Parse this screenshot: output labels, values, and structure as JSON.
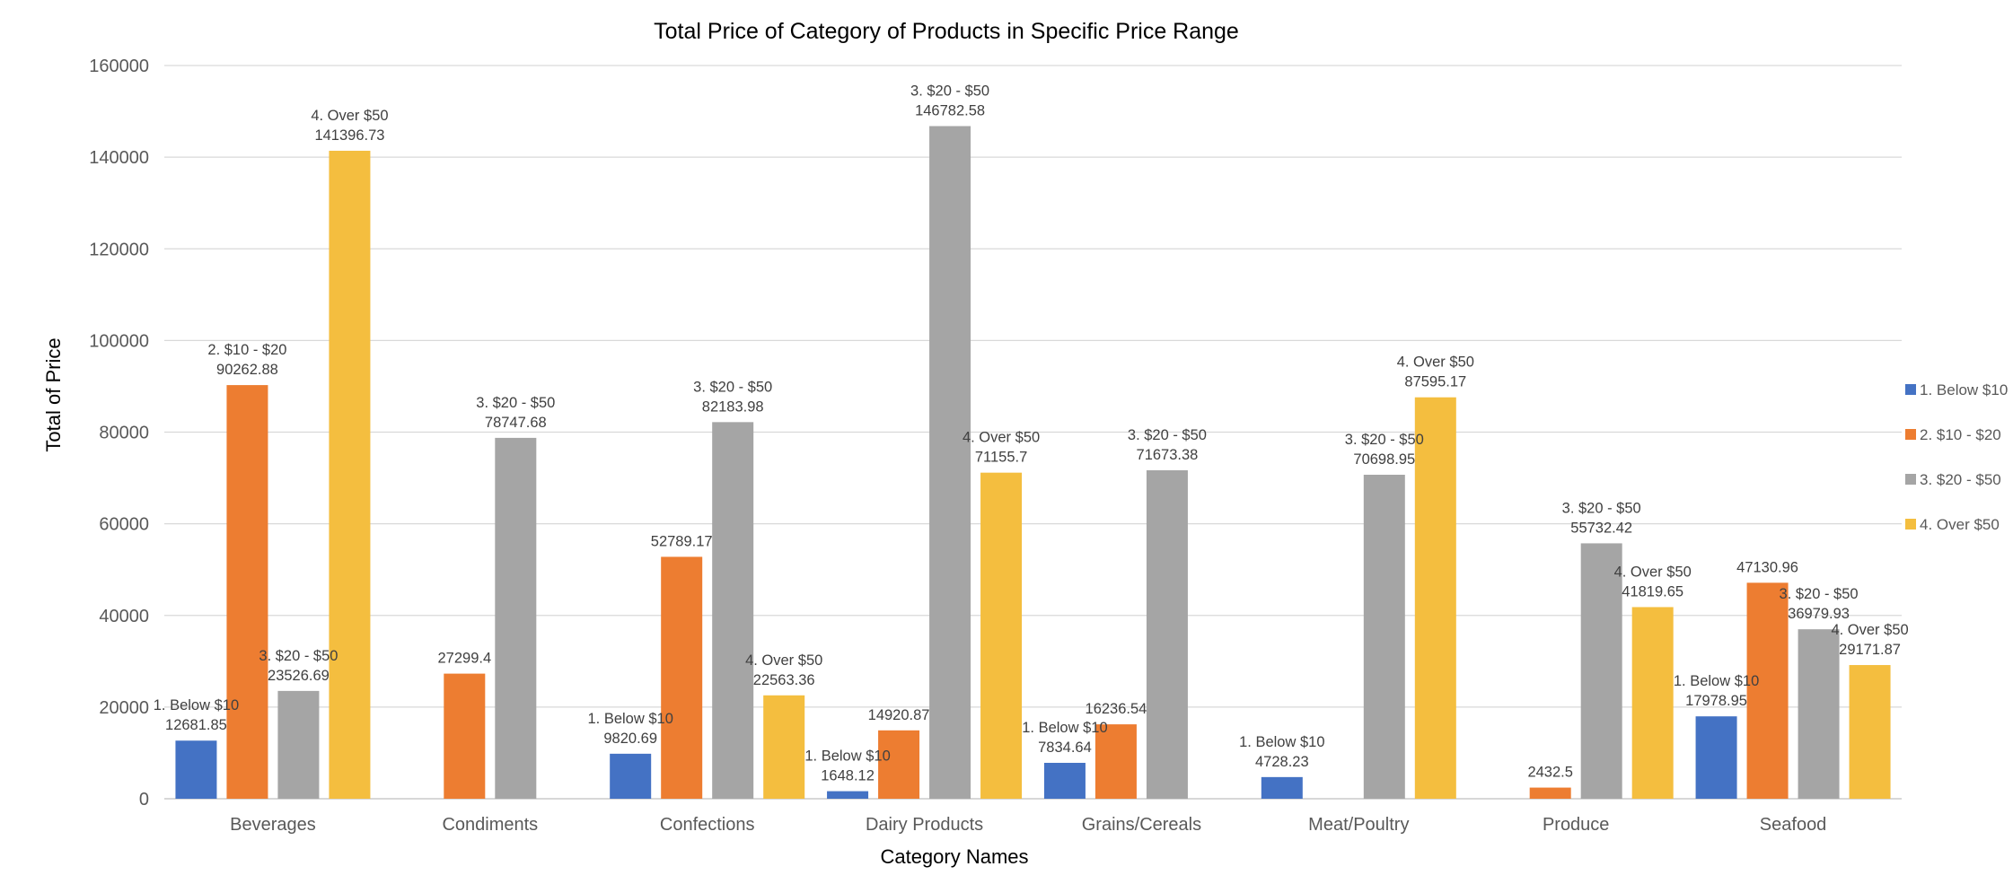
{
  "chart_data": {
    "type": "bar",
    "title": "Total Price of Category of Products in Specific Price Range",
    "xlabel": "Category Names",
    "ylabel": "Total of Price",
    "ylim": [
      0,
      160000
    ],
    "yticks": [
      "0",
      "20000",
      "40000",
      "60000",
      "80000",
      "100000",
      "120000",
      "140000",
      "160000"
    ],
    "grid": true,
    "legend_position": "right",
    "categories": [
      "Beverages",
      "Condiments",
      "Confections",
      "Dairy Products",
      "Grains/Cereals",
      "Meat/Poultry",
      "Produce",
      "Seafood"
    ],
    "series": [
      {
        "name": "1. Below $10",
        "color": "#4472C4",
        "values": [
          12681.85,
          null,
          9820.69,
          1648.12,
          7834.64,
          4728.23,
          null,
          17978.95
        ],
        "labels": [
          "12681.85",
          null,
          "9820.69",
          "1648.12",
          "7834.64",
          "4728.23",
          null,
          "17978.95"
        ]
      },
      {
        "name": "2. $10 - $20",
        "color": "#ED7D31",
        "values": [
          90262.88,
          27299.4,
          52789.17,
          14920.87,
          16236.54,
          null,
          2432.5,
          47130.96
        ],
        "labels": [
          "90262.88",
          "27299.4",
          "52789.17",
          "14920.87",
          "16236.54",
          null,
          "2432.5",
          "47130.96"
        ]
      },
      {
        "name": "3. $20 - $50",
        "color": "#A5A5A5",
        "values": [
          23526.69,
          78747.68,
          82183.98,
          146782.58,
          71673.38,
          70698.95,
          55732.42,
          36979.93
        ],
        "labels": [
          "23526.69",
          "78747.68",
          "82183.98",
          "146782.58",
          "71673.38",
          "70698.95",
          "55732.42",
          "36979.93"
        ]
      },
      {
        "name": "4. Over $50",
        "color": "#F4BE3F",
        "values": [
          141396.73,
          null,
          22563.36,
          71155.7,
          null,
          87595.17,
          41819.65,
          29171.87
        ],
        "labels": [
          "141396.73",
          null,
          "22563.36",
          "71155.7",
          null,
          "87595.17",
          "41819.65",
          "29171.87"
        ]
      }
    ],
    "data_label_series_names": [
      [
        "1. Below $10",
        null,
        "1. Below $10",
        "1. Below $10",
        "1. Below $10",
        "1. Below $10",
        null,
        "1. Below $10"
      ],
      [
        "2. $10 - $20",
        null,
        null,
        null,
        null,
        null,
        null,
        null
      ],
      [
        "3. $20 - $50",
        "3. $20 - $50",
        "3. $20 - $50",
        "3. $20 - $50",
        "3. $20 - $50",
        "3. $20 - $50",
        "3. $20 - $50",
        "3. $20 - $50"
      ],
      [
        "4. Over $50",
        null,
        "4. Over $50",
        "4. Over $50",
        null,
        "4. Over $50",
        "4. Over $50",
        "4. Over $50"
      ]
    ]
  }
}
